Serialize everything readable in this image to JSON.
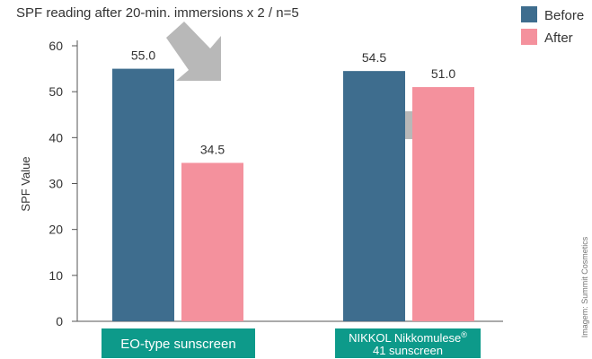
{
  "chart_data": {
    "type": "bar",
    "subtitle": "SPF reading after 20-min. immersions x 2 / n=5",
    "ylabel": "SPF Value",
    "ylim": [
      0,
      60
    ],
    "yticks": [
      0,
      10,
      20,
      30,
      40,
      50,
      60
    ],
    "categories": [
      {
        "line1": "EO-type sunscreen",
        "line2": ""
      },
      {
        "line1": "NIKKOL Nikkomulese",
        "sup": "®",
        "line2": "41 sunscreen"
      }
    ],
    "series": [
      {
        "name": "Before",
        "color": "#3e6d8e",
        "values": [
          55.0,
          54.5
        ],
        "labels": [
          "55.0",
          "54.5"
        ]
      },
      {
        "name": "After",
        "color": "#f4919d",
        "values": [
          34.5,
          51.0
        ],
        "labels": [
          "34.5",
          "51.0"
        ]
      }
    ],
    "legend_position": "top-right",
    "category_box_color": "#0d9a8a",
    "arrow_color": "#b8b8b8",
    "grid": false
  },
  "credit": "Imagem: Summit Cosmetics"
}
